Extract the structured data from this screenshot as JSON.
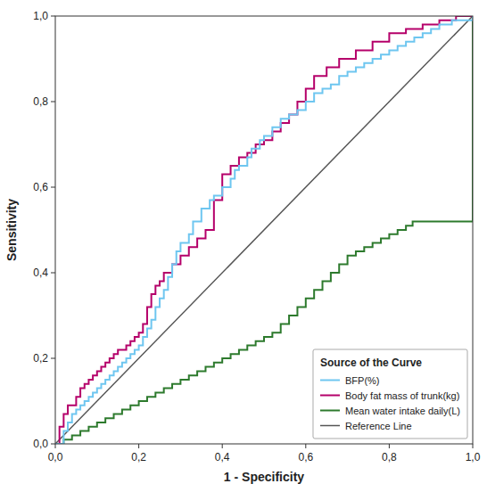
{
  "chart_data": {
    "type": "line",
    "x_label": "1 - Specificity",
    "y_label": "Sensitivity",
    "legend_title": "Source of the Curve",
    "legend": "lower right",
    "grid": false,
    "xlim": [
      0.0,
      1.0
    ],
    "ylim": [
      0.0,
      1.0
    ],
    "xticks": [
      {
        "value": 0.0,
        "label": "0,0"
      },
      {
        "value": 0.2,
        "label": "0,2"
      },
      {
        "value": 0.4,
        "label": "0,4"
      },
      {
        "value": 0.6,
        "label": "0,6"
      },
      {
        "value": 0.8,
        "label": "0,8"
      },
      {
        "value": 1.0,
        "label": "1,0"
      }
    ],
    "yticks": [
      {
        "value": 0.0,
        "label": "0,0"
      },
      {
        "value": 0.2,
        "label": "0,2"
      },
      {
        "value": 0.4,
        "label": "0,4"
      },
      {
        "value": 0.6,
        "label": "0,6"
      },
      {
        "value": 0.8,
        "label": "0,8"
      },
      {
        "value": 1.0,
        "label": "1,0"
      }
    ],
    "series": [
      {
        "name": "BFP(%)",
        "type": "step",
        "color": "#6EC6F0",
        "x": [
          0.0,
          0.02,
          0.03,
          0.04,
          0.05,
          0.06,
          0.07,
          0.08,
          0.09,
          0.1,
          0.11,
          0.12,
          0.13,
          0.14,
          0.15,
          0.16,
          0.17,
          0.18,
          0.19,
          0.2,
          0.21,
          0.22,
          0.23,
          0.24,
          0.25,
          0.26,
          0.27,
          0.28,
          0.29,
          0.3,
          0.32,
          0.33,
          0.35,
          0.37,
          0.38,
          0.4,
          0.42,
          0.43,
          0.44,
          0.46,
          0.47,
          0.49,
          0.5,
          0.52,
          0.54,
          0.56,
          0.58,
          0.6,
          0.62,
          0.64,
          0.66,
          0.68,
          0.7,
          0.72,
          0.74,
          0.76,
          0.78,
          0.8,
          0.82,
          0.84,
          0.86,
          0.88,
          0.9,
          0.92,
          0.95,
          1.0
        ],
        "values": [
          0.0,
          0.03,
          0.05,
          0.07,
          0.08,
          0.09,
          0.1,
          0.11,
          0.12,
          0.13,
          0.14,
          0.15,
          0.16,
          0.17,
          0.18,
          0.19,
          0.2,
          0.21,
          0.22,
          0.23,
          0.25,
          0.27,
          0.29,
          0.32,
          0.34,
          0.36,
          0.39,
          0.42,
          0.45,
          0.47,
          0.49,
          0.52,
          0.55,
          0.57,
          0.58,
          0.6,
          0.62,
          0.64,
          0.65,
          0.67,
          0.69,
          0.71,
          0.72,
          0.74,
          0.76,
          0.77,
          0.78,
          0.8,
          0.82,
          0.83,
          0.84,
          0.86,
          0.87,
          0.88,
          0.89,
          0.9,
          0.91,
          0.92,
          0.93,
          0.94,
          0.95,
          0.96,
          0.97,
          0.98,
          0.99,
          1.0
        ]
      },
      {
        "name": "Body fat mass of trunk(kg)",
        "type": "step",
        "color": "#B5006A",
        "x": [
          0.0,
          0.01,
          0.02,
          0.03,
          0.05,
          0.06,
          0.07,
          0.08,
          0.09,
          0.1,
          0.11,
          0.12,
          0.13,
          0.14,
          0.15,
          0.16,
          0.17,
          0.18,
          0.19,
          0.2,
          0.21,
          0.22,
          0.23,
          0.24,
          0.25,
          0.26,
          0.28,
          0.3,
          0.32,
          0.34,
          0.36,
          0.38,
          0.4,
          0.42,
          0.44,
          0.46,
          0.48,
          0.5,
          0.52,
          0.54,
          0.56,
          0.58,
          0.6,
          0.62,
          0.65,
          0.68,
          0.72,
          0.76,
          0.8,
          0.84,
          0.88,
          0.92,
          0.96,
          1.0
        ],
        "values": [
          0.0,
          0.04,
          0.07,
          0.09,
          0.11,
          0.13,
          0.14,
          0.15,
          0.16,
          0.17,
          0.18,
          0.19,
          0.2,
          0.21,
          0.22,
          0.22,
          0.23,
          0.24,
          0.25,
          0.26,
          0.28,
          0.32,
          0.35,
          0.37,
          0.38,
          0.4,
          0.42,
          0.44,
          0.46,
          0.48,
          0.5,
          0.57,
          0.63,
          0.65,
          0.67,
          0.68,
          0.7,
          0.71,
          0.73,
          0.75,
          0.77,
          0.8,
          0.83,
          0.86,
          0.88,
          0.9,
          0.92,
          0.94,
          0.96,
          0.97,
          0.98,
          0.99,
          1.0,
          1.0
        ]
      },
      {
        "name": "Mean water intake daily(L)",
        "type": "step",
        "color": "#2D7A2D",
        "x": [
          0.0,
          0.02,
          0.04,
          0.06,
          0.08,
          0.1,
          0.12,
          0.14,
          0.16,
          0.18,
          0.2,
          0.22,
          0.24,
          0.26,
          0.28,
          0.3,
          0.32,
          0.34,
          0.36,
          0.38,
          0.4,
          0.42,
          0.44,
          0.46,
          0.48,
          0.5,
          0.52,
          0.54,
          0.56,
          0.58,
          0.6,
          0.62,
          0.64,
          0.66,
          0.68,
          0.7,
          0.72,
          0.74,
          0.76,
          0.78,
          0.8,
          0.82,
          0.84,
          0.856,
          0.858,
          0.86,
          0.88,
          0.9,
          1.0
        ],
        "values": [
          0.0,
          0.01,
          0.02,
          0.03,
          0.04,
          0.05,
          0.06,
          0.07,
          0.08,
          0.09,
          0.1,
          0.11,
          0.12,
          0.13,
          0.14,
          0.15,
          0.16,
          0.17,
          0.18,
          0.19,
          0.2,
          0.21,
          0.22,
          0.23,
          0.24,
          0.25,
          0.26,
          0.28,
          0.3,
          0.32,
          0.34,
          0.36,
          0.38,
          0.4,
          0.42,
          0.44,
          0.45,
          0.46,
          0.47,
          0.48,
          0.49,
          0.5,
          0.51,
          0.52,
          0.52,
          0.52,
          0.52,
          0.52,
          1.0
        ]
      },
      {
        "name": "Reference Line",
        "type": "line",
        "color": "#555555",
        "x": [
          0.0,
          1.0
        ],
        "values": [
          0.0,
          1.0
        ]
      }
    ]
  }
}
